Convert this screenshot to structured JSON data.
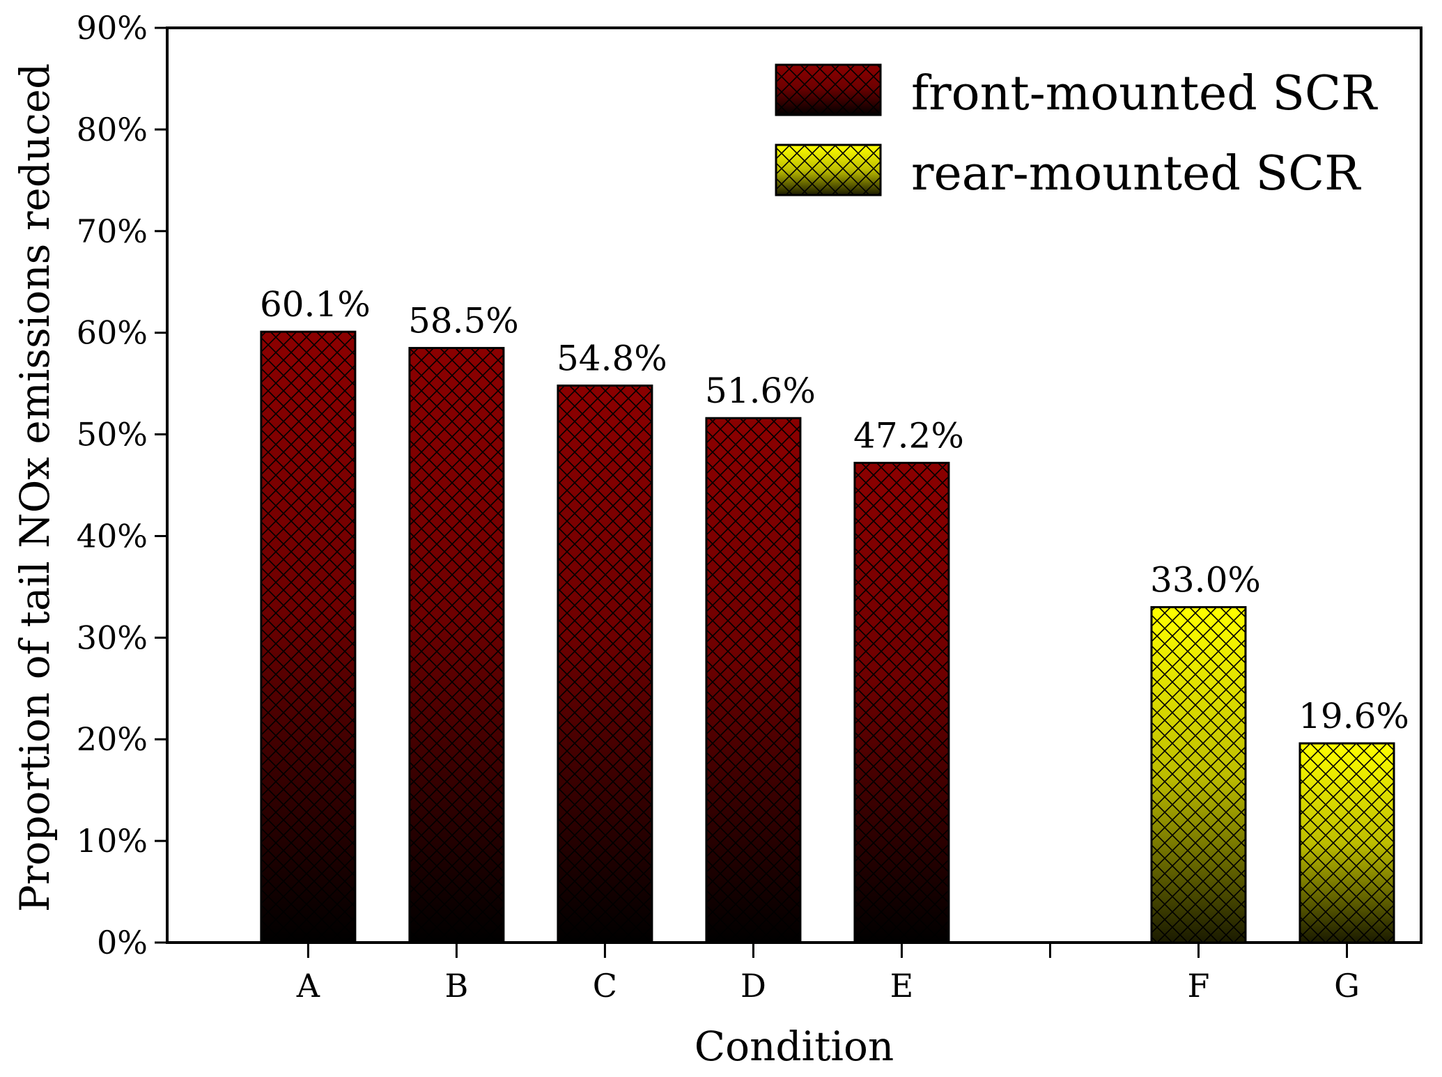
{
  "chart_data": {
    "type": "bar",
    "xlabel": "Condition",
    "ylabel": "Proportion of tail NOx emissions reduced",
    "ylim": [
      0,
      90
    ],
    "ytick_step": 10,
    "y_unit": "%",
    "categories": [
      "A",
      "B",
      "C",
      "D",
      "E",
      "",
      "F",
      "G"
    ],
    "series": [
      {
        "name": "front-mounted SCR",
        "color": "#8b0000",
        "gradient_bottom": "#000000",
        "values": [
          60.1,
          58.5,
          54.8,
          51.6,
          47.2,
          null,
          null,
          null
        ],
        "labels": [
          "60.1%",
          "58.5%",
          "54.8%",
          "51.6%",
          "47.2%",
          "",
          "",
          ""
        ]
      },
      {
        "name": "rear-mounted SCR",
        "color": "#ffff00",
        "gradient_bottom": "#1a1a00",
        "values": [
          null,
          null,
          null,
          null,
          null,
          null,
          33.0,
          19.6
        ],
        "labels": [
          "",
          "",
          "",
          "",
          "",
          "",
          "33.0%",
          "19.6%"
        ]
      }
    ],
    "legend_position": "top-right",
    "grid": false,
    "hatch": "crosshatch"
  }
}
